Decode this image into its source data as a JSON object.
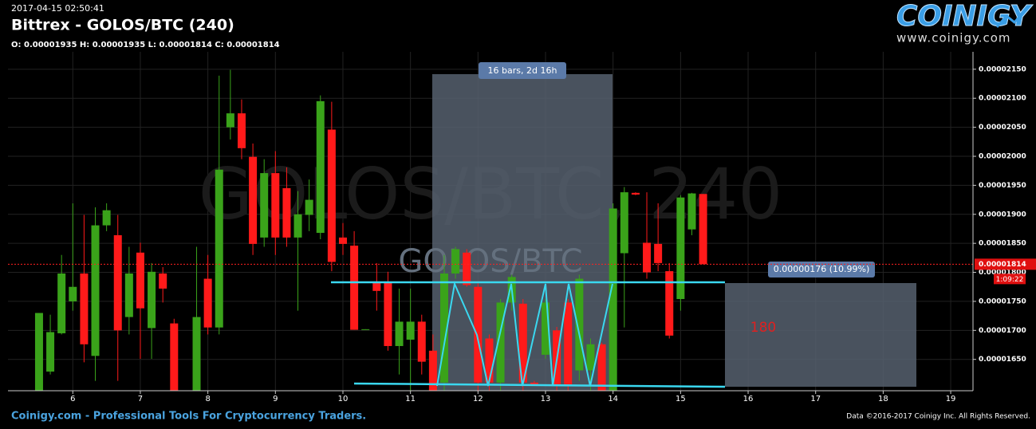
{
  "header": {
    "timestamp": "2017-04-15 02:50:41",
    "title": "Bittrex - GOLOS/BTC (240)",
    "ohlc": "O: 0.00001935 H: 0.00001935 L: 0.00001814 C: 0.00001814",
    "brand": "COINIGY",
    "brand_url": "www.coinigy.com"
  },
  "footer": {
    "left": "Coinigy.com - Professional Tools For Cryptocurrency Traders.",
    "right": "Data ©2016-2017 Coinigy Inc. All Rights Reserved."
  },
  "chart_data": {
    "type": "candlestick",
    "watermark": "GOLOS/BTC, 240",
    "watermark_small": "GOLOS/BTC",
    "up_color": "#3aa31a",
    "down_color": "#ff1a1a",
    "grid": true,
    "xlim": [
      5.04,
      19.33
    ],
    "xticks": [
      6,
      7,
      8,
      9,
      10,
      11,
      12,
      13,
      14,
      15,
      16,
      17,
      18,
      19
    ],
    "ylim": [
      1.596e-05,
      2.18e-05
    ],
    "yticks": [
      {
        "value": 1.65e-05,
        "label": "0.00001650"
      },
      {
        "value": 1.7e-05,
        "label": "0.00001700"
      },
      {
        "value": 1.75e-05,
        "label": "0.00001750"
      },
      {
        "value": 1.8e-05,
        "label": "0.00001800"
      },
      {
        "value": 1.85e-05,
        "label": "0.00001850"
      },
      {
        "value": 1.9e-05,
        "label": "0.00001900"
      },
      {
        "value": 1.95e-05,
        "label": "0.00001950"
      },
      {
        "value": 2e-05,
        "label": "0.00002000"
      },
      {
        "value": 2.05e-05,
        "label": "0.00002050"
      },
      {
        "value": 2.1e-05,
        "label": "0.00002100"
      },
      {
        "value": 2.15e-05,
        "label": "0.00002150"
      }
    ],
    "x": [
      5.5,
      5.6667,
      5.8333,
      6,
      6.1667,
      6.3333,
      6.5,
      6.6667,
      6.8333,
      7,
      7.1667,
      7.3333,
      7.5,
      7.8333,
      8,
      8.1667,
      8.3333,
      8.5,
      8.6667,
      8.8333,
      9,
      9.1667,
      9.3333,
      9.5,
      9.6667,
      9.8333,
      10,
      10.1667,
      10.3333,
      10.5,
      10.6667,
      10.8333,
      11,
      11.1667,
      11.3333,
      11.5,
      11.6667,
      11.8333,
      12,
      12.1667,
      12.3333,
      12.5,
      12.6667,
      12.8333,
      13,
      13.1667,
      13.3333,
      13.5,
      13.6667,
      13.8333,
      14,
      14.1667,
      14.3333,
      14.5,
      14.6667,
      14.8333,
      15,
      15.1667,
      15.3333
    ],
    "open": [
      1.596e-05,
      1.629e-05,
      1.695e-05,
      1.75e-05,
      1.798e-05,
      1.656e-05,
      1.881e-05,
      1.864e-05,
      1.723e-05,
      1.834e-05,
      1.704e-05,
      1.798e-05,
      1.712e-05,
      1.596e-05,
      1.789e-05,
      1.705e-05,
      2.05e-05,
      2.074e-05,
      1.999e-05,
      1.86e-05,
      1.971e-05,
      1.945e-05,
      1.86e-05,
      1.899e-05,
      1.868e-05,
      2.046e-05,
      1.86e-05,
      1.846e-05,
      1.701e-05,
      1.783e-05,
      1.783e-05,
      1.673e-05,
      1.684e-05,
      1.715e-05,
      1.665e-05,
      1.61e-05,
      1.798e-05,
      1.834e-05,
      1.775e-05,
      1.686e-05,
      1.61e-05,
      1.748e-05,
      1.746e-05,
      1.61e-05,
      1.658e-05,
      1.7e-05,
      1.748e-05,
      1.631e-05,
      1.631e-05,
      1.676e-05,
      1.596e-05,
      1.833e-05,
      1.937e-05,
      1.851e-05,
      1.849e-05,
      1.802e-05,
      1.754e-05,
      1.874e-05,
      1.935e-05
    ],
    "high": [
      1.73e-05,
      1.727e-05,
      1.83e-05,
      1.919e-05,
      1.899e-05,
      1.912e-05,
      1.919e-05,
      1.899e-05,
      1.844e-05,
      1.851e-05,
      1.816e-05,
      1.809e-05,
      1.72e-05,
      1.844e-05,
      1.83e-05,
      2.139e-05,
      2.149e-05,
      2.098e-05,
      2.022e-05,
      1.995e-05,
      2.009e-05,
      1.981e-05,
      1.94e-05,
      1.96e-05,
      2.105e-05,
      2.094e-05,
      1.885e-05,
      1.871e-05,
      1.702e-05,
      1.816e-05,
      1.801e-05,
      1.772e-05,
      1.772e-05,
      1.727e-05,
      1.693e-05,
      1.83e-05,
      1.844e-05,
      1.84e-05,
      1.782e-05,
      1.693e-05,
      1.754e-05,
      1.796e-05,
      1.754e-05,
      1.613e-05,
      1.754e-05,
      1.706e-05,
      1.754e-05,
      1.796e-05,
      1.686e-05,
      1.679e-05,
      1.919e-05,
      1.947e-05,
      1.938e-05,
      1.938e-05,
      1.919e-05,
      1.816e-05,
      1.933e-05,
      1.937e-05,
      1.935e-05
    ],
    "low": [
      1.596e-05,
      1.624e-05,
      1.693e-05,
      1.734e-05,
      1.645e-05,
      1.613e-05,
      1.871e-05,
      1.613e-05,
      1.693e-05,
      1.651e-05,
      1.651e-05,
      1.748e-05,
      1.596e-05,
      1.596e-05,
      1.693e-05,
      1.693e-05,
      2.029e-05,
      1.995e-05,
      1.83e-05,
      1.844e-05,
      1.83e-05,
      1.844e-05,
      1.734e-05,
      1.871e-05,
      1.857e-05,
      1.802e-05,
      1.83e-05,
      1.701e-05,
      1.701e-05,
      1.734e-05,
      1.665e-05,
      1.624e-05,
      1.596e-05,
      1.624e-05,
      1.596e-05,
      1.596e-05,
      1.789e-05,
      1.775e-05,
      1.596e-05,
      1.596e-05,
      1.596e-05,
      1.734e-05,
      1.596e-05,
      1.605e-05,
      1.651e-05,
      1.596e-05,
      1.596e-05,
      1.613e-05,
      1.596e-05,
      1.596e-05,
      1.596e-05,
      1.705e-05,
      1.933e-05,
      1.789e-05,
      1.802e-05,
      1.686e-05,
      1.734e-05,
      1.864e-05,
      1.814e-05
    ],
    "close": [
      1.73e-05,
      1.697e-05,
      1.798e-05,
      1.775e-05,
      1.676e-05,
      1.881e-05,
      1.907e-05,
      1.7e-05,
      1.798e-05,
      1.738e-05,
      1.801e-05,
      1.772e-05,
      1.596e-05,
      1.723e-05,
      1.705e-05,
      1.977e-05,
      2.074e-05,
      2.014e-05,
      1.849e-05,
      1.971e-05,
      1.86e-05,
      1.86e-05,
      1.9e-05,
      1.925e-05,
      2.095e-05,
      1.818e-05,
      1.849e-05,
      1.701e-05,
      1.702e-05,
      1.768e-05,
      1.673e-05,
      1.715e-05,
      1.715e-05,
      1.646e-05,
      1.596e-05,
      1.798e-05,
      1.84e-05,
      1.778e-05,
      1.61e-05,
      1.61e-05,
      1.748e-05,
      1.792e-05,
      1.61e-05,
      1.605e-05,
      1.748e-05,
      1.607e-05,
      1.606e-05,
      1.789e-05,
      1.676e-05,
      1.596e-05,
      1.91e-05,
      1.938e-05,
      1.934e-05,
      1.8e-05,
      1.816e-05,
      1.691e-05,
      1.929e-05,
      1.936e-05,
      1.814e-05
    ],
    "annotations": {
      "last_price": "0.00001814",
      "countdown": "1:09:22",
      "measure": "16 bars, 2d 16h",
      "range": "0.00000176 (10.99%)",
      "range_bars": "180"
    }
  }
}
